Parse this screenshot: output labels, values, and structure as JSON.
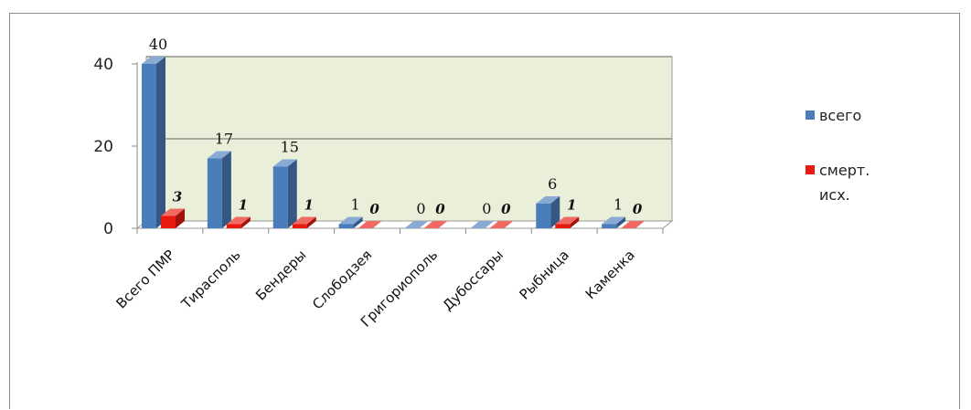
{
  "chart_data": {
    "type": "bar",
    "categories": [
      "Всего ПМР",
      "Тирасполь",
      "Бендеры",
      "Слободзея",
      "Григориополь",
      "Дубоссары",
      "Рыбница",
      "Каменка"
    ],
    "series": [
      {
        "name": "всего",
        "values": [
          40,
          17,
          15,
          1,
          0,
          0,
          6,
          1
        ],
        "color": "#4a7ebb"
      },
      {
        "name": "смерт. исх.",
        "values": [
          3,
          1,
          1,
          0,
          0,
          0,
          1,
          0
        ],
        "color": "#e8190f"
      }
    ],
    "y_ticks": [
      "0",
      "20",
      "40"
    ],
    "ylim": [
      0,
      40
    ],
    "grid": true,
    "legend": {
      "position": "right",
      "items": [
        "всего",
        "смерт.",
        "исх."
      ]
    },
    "wall_color": "#e9efd9"
  }
}
